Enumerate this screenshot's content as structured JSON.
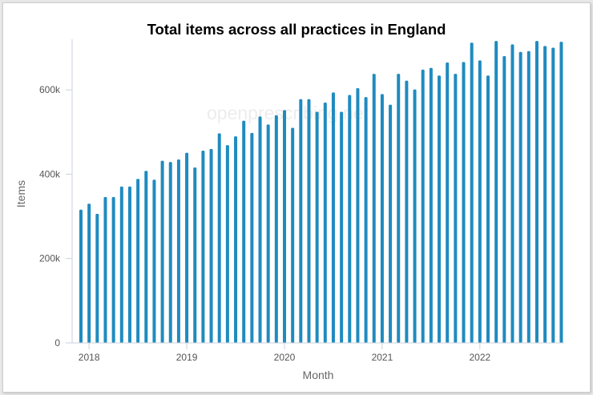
{
  "watermark": "openprescribing.net",
  "colors": {
    "bar": "#1f8bbf",
    "axis": "#c9d1dc",
    "text": "#555555"
  },
  "chart_data": {
    "type": "bar",
    "title": "Total items across all practices in England",
    "xlabel": "Month",
    "ylabel": "Items",
    "ylim": [
      0,
      720000
    ],
    "yticks": [
      0,
      200000,
      400000,
      600000
    ],
    "ytick_labels": [
      "0",
      "200k",
      "400k",
      "600k"
    ],
    "xticks": [
      "2018",
      "2019",
      "2020",
      "2021",
      "2022"
    ],
    "grid": false,
    "legend": "none",
    "x": [
      "2017-12",
      "2018-01",
      "2018-02",
      "2018-03",
      "2018-04",
      "2018-05",
      "2018-06",
      "2018-07",
      "2018-08",
      "2018-09",
      "2018-10",
      "2018-11",
      "2018-12",
      "2019-01",
      "2019-02",
      "2019-03",
      "2019-04",
      "2019-05",
      "2019-06",
      "2019-07",
      "2019-08",
      "2019-09",
      "2019-10",
      "2019-11",
      "2019-12",
      "2020-01",
      "2020-02",
      "2020-03",
      "2020-04",
      "2020-05",
      "2020-06",
      "2020-07",
      "2020-08",
      "2020-09",
      "2020-10",
      "2020-11",
      "2020-12",
      "2021-01",
      "2021-02",
      "2021-03",
      "2021-04",
      "2021-05",
      "2021-06",
      "2021-07",
      "2021-08",
      "2021-09",
      "2021-10",
      "2021-11",
      "2021-12",
      "2022-01",
      "2022-02",
      "2022-03",
      "2022-04",
      "2022-05",
      "2022-06",
      "2022-07",
      "2022-08",
      "2022-09",
      "2022-10",
      "2022-11"
    ],
    "values": [
      316000,
      330000,
      306000,
      346000,
      346000,
      371000,
      371000,
      389000,
      408000,
      387000,
      432000,
      429000,
      435000,
      451000,
      416000,
      456000,
      460000,
      497000,
      469000,
      490000,
      527000,
      498000,
      537000,
      518000,
      540000,
      552000,
      510000,
      578000,
      578000,
      548000,
      570000,
      594000,
      548000,
      588000,
      604000,
      583000,
      638000,
      590000,
      565000,
      638000,
      622000,
      601000,
      648000,
      652000,
      634000,
      665000,
      638000,
      666000,
      712000,
      670000,
      634000,
      716000,
      680000,
      708000,
      690000,
      692000,
      716000,
      704000,
      700000,
      714000
    ]
  }
}
